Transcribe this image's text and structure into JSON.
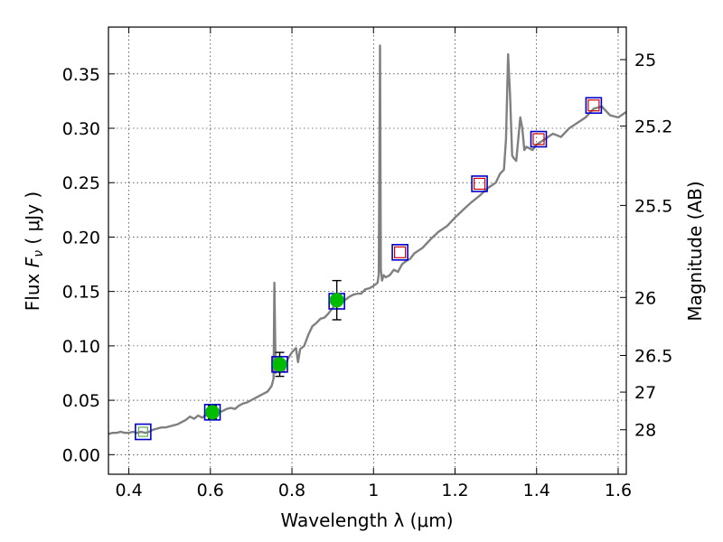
{
  "chart_data": {
    "type": "line",
    "title": "",
    "xlabel": "Wavelength  λ (μm)",
    "ylabel_prefix": "Flux  ",
    "ylabel_var": "F",
    "ylabel_sub": "ν",
    "ylabel_suffix": "  ( μJy )",
    "right_ylabel": "Magnitude (AB)",
    "xlim": [
      0.35,
      1.62
    ],
    "ylim": [
      -0.018,
      0.393
    ],
    "grid": true,
    "x_ticks": [
      {
        "value": 0.4,
        "label": "0.4"
      },
      {
        "value": 0.6,
        "label": "0.6"
      },
      {
        "value": 0.8,
        "label": "0.8"
      },
      {
        "value": 1.0,
        "label": "1"
      },
      {
        "value": 1.2,
        "label": "1.2"
      },
      {
        "value": 1.4,
        "label": "1.4"
      },
      {
        "value": 1.6,
        "label": "1.6"
      }
    ],
    "y_ticks": [
      {
        "value": 0.0,
        "label": "0.00"
      },
      {
        "value": 0.05,
        "label": "0.05"
      },
      {
        "value": 0.1,
        "label": "0.10"
      },
      {
        "value": 0.15,
        "label": "0.15"
      },
      {
        "value": 0.2,
        "label": "0.20"
      },
      {
        "value": 0.25,
        "label": "0.25"
      },
      {
        "value": 0.3,
        "label": "0.30"
      },
      {
        "value": 0.35,
        "label": "0.35"
      }
    ],
    "right_ticks": [
      {
        "flux": 0.3631,
        "label": "25"
      },
      {
        "flux": 0.302,
        "label": "25.2"
      },
      {
        "flux": 0.2291,
        "label": "25.5"
      },
      {
        "flux": 0.1445,
        "label": "26"
      },
      {
        "flux": 0.0912,
        "label": "26.5"
      },
      {
        "flux": 0.0575,
        "label": "27"
      },
      {
        "flux": 0.0229,
        "label": "28"
      }
    ],
    "series": [
      {
        "role": "model-spectrum",
        "color": "#808080",
        "x": [
          0.35,
          0.36,
          0.37,
          0.38,
          0.39,
          0.4,
          0.41,
          0.42,
          0.43,
          0.44,
          0.45,
          0.46,
          0.47,
          0.48,
          0.49,
          0.5,
          0.51,
          0.52,
          0.53,
          0.54,
          0.55,
          0.56,
          0.57,
          0.58,
          0.59,
          0.6,
          0.61,
          0.62,
          0.63,
          0.64,
          0.65,
          0.66,
          0.67,
          0.68,
          0.69,
          0.7,
          0.71,
          0.72,
          0.73,
          0.74,
          0.75,
          0.755,
          0.757,
          0.76,
          0.763,
          0.765,
          0.77,
          0.775,
          0.78,
          0.79,
          0.8,
          0.81,
          0.815,
          0.82,
          0.83,
          0.84,
          0.85,
          0.86,
          0.87,
          0.88,
          0.89,
          0.9,
          0.91,
          0.92,
          0.93,
          0.94,
          0.95,
          0.96,
          0.97,
          0.98,
          0.99,
          1.0,
          1.01,
          1.013,
          1.016,
          1.018,
          1.021,
          1.025,
          1.03,
          1.04,
          1.05,
          1.06,
          1.07,
          1.08,
          1.09,
          1.1,
          1.12,
          1.14,
          1.16,
          1.18,
          1.2,
          1.22,
          1.24,
          1.26,
          1.28,
          1.3,
          1.31,
          1.32,
          1.325,
          1.33,
          1.335,
          1.34,
          1.345,
          1.35,
          1.36,
          1.365,
          1.37,
          1.375,
          1.38,
          1.39,
          1.4,
          1.42,
          1.44,
          1.46,
          1.48,
          1.5,
          1.52,
          1.54,
          1.56,
          1.58,
          1.6,
          1.62
        ],
        "y": [
          0.019,
          0.02,
          0.02,
          0.021,
          0.02,
          0.02,
          0.021,
          0.02,
          0.021,
          0.02,
          0.021,
          0.023,
          0.024,
          0.025,
          0.025,
          0.026,
          0.027,
          0.028,
          0.03,
          0.032,
          0.035,
          0.033,
          0.036,
          0.034,
          0.037,
          0.039,
          0.038,
          0.039,
          0.04,
          0.042,
          0.043,
          0.042,
          0.045,
          0.047,
          0.048,
          0.05,
          0.052,
          0.054,
          0.056,
          0.058,
          0.063,
          0.07,
          0.158,
          0.075,
          0.08,
          0.085,
          0.075,
          0.082,
          0.076,
          0.088,
          0.094,
          0.098,
          0.085,
          0.097,
          0.1,
          0.11,
          0.118,
          0.121,
          0.125,
          0.126,
          0.13,
          0.135,
          0.138,
          0.14,
          0.142,
          0.145,
          0.147,
          0.148,
          0.148,
          0.152,
          0.153,
          0.155,
          0.158,
          0.166,
          0.376,
          0.17,
          0.16,
          0.165,
          0.163,
          0.165,
          0.17,
          0.168,
          0.175,
          0.178,
          0.18,
          0.185,
          0.19,
          0.198,
          0.205,
          0.21,
          0.218,
          0.225,
          0.232,
          0.238,
          0.245,
          0.25,
          0.258,
          0.262,
          0.29,
          0.368,
          0.33,
          0.275,
          0.272,
          0.27,
          0.31,
          0.3,
          0.28,
          0.283,
          0.282,
          0.28,
          0.285,
          0.29,
          0.295,
          0.292,
          0.3,
          0.305,
          0.31,
          0.318,
          0.32,
          0.312,
          0.31,
          0.315
        ]
      },
      {
        "role": "model-points",
        "marker": "open-square",
        "color": "#0000cc",
        "x": [
          0.435,
          0.605,
          0.77,
          0.91,
          1.065,
          1.26,
          1.405,
          1.54
        ],
        "y": [
          0.021,
          0.039,
          0.083,
          0.141,
          0.186,
          0.249,
          0.29,
          0.321
        ]
      },
      {
        "role": "upper-limits",
        "marker": "small-open-square",
        "color": "#cc0000",
        "x": [
          1.065,
          1.26,
          1.405,
          1.54
        ],
        "y": [
          0.186,
          0.249,
          0.29,
          0.321
        ]
      },
      {
        "role": "detections",
        "marker": "filled-circle",
        "color": "#00bb00",
        "x": [
          0.605,
          0.77,
          0.91
        ],
        "y": [
          0.039,
          0.083,
          0.142
        ],
        "yerr": [
          0.006,
          0.011,
          0.018
        ]
      },
      {
        "role": "non-detection",
        "marker": "small-open-square",
        "color": "#55aa55",
        "x": [
          0.435
        ],
        "y": [
          0.021
        ]
      }
    ]
  }
}
